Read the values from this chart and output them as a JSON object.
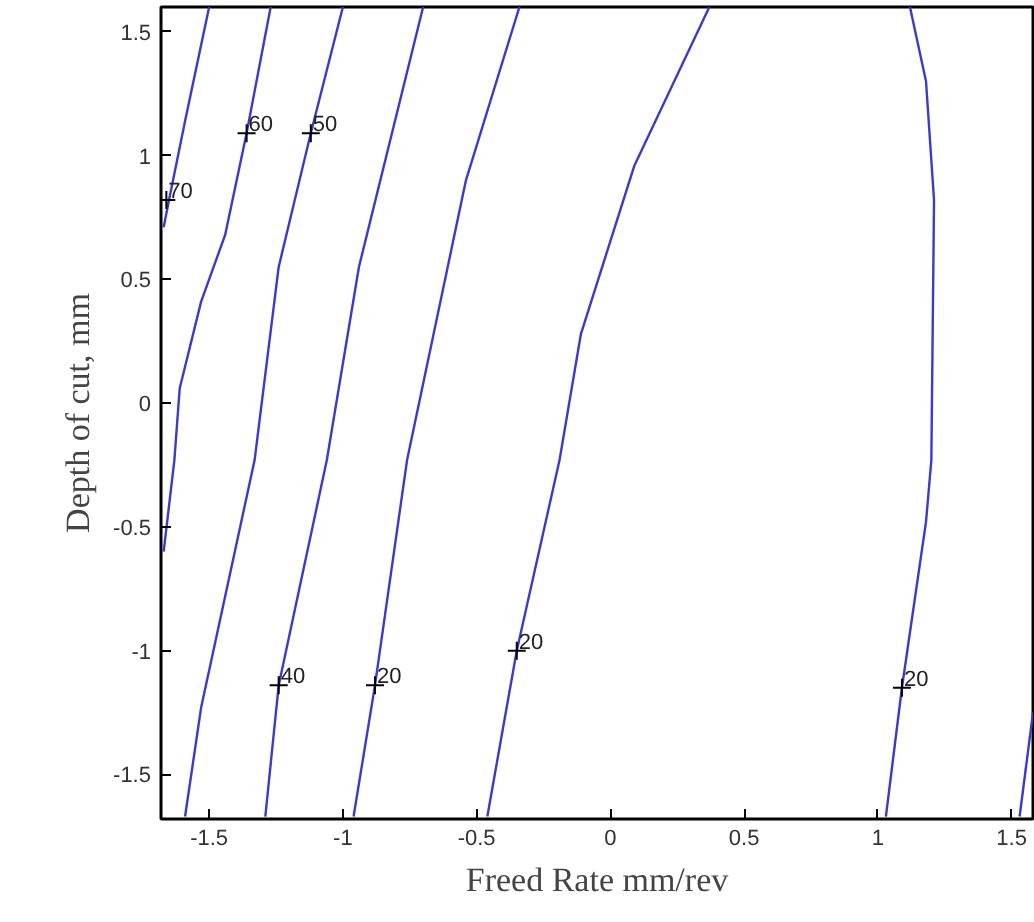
{
  "chart_data": {
    "type": "line",
    "xlabel": "Freed Rate mm/rev",
    "ylabel": "Depth of cut, mm",
    "xlim": [
      -1.68,
      1.58
    ],
    "ylim": [
      -1.68,
      1.6
    ],
    "xticks": [
      -1.5,
      -1,
      -0.5,
      0,
      0.5,
      1,
      1.5
    ],
    "yticks": [
      -1.5,
      -1,
      -0.5,
      0,
      0.5,
      1,
      1.5
    ],
    "grid": false,
    "marker": "none",
    "line_style": "solid",
    "series": [
      {
        "color": "#3a3acc",
        "x": [
          -1.5,
          -1.59,
          -1.65,
          -1.67
        ],
        "values": [
          1.6,
          1.14,
          0.82,
          0.71
        ]
      },
      {
        "color": "#3a3acc",
        "x": [
          -1.27,
          -1.36,
          -1.44,
          -1.53,
          -1.61,
          -1.63,
          -1.67
        ],
        "values": [
          1.6,
          1.09,
          0.68,
          0.41,
          0.06,
          -0.23,
          -0.6
        ]
      },
      {
        "color": "#3a3acc",
        "x": [
          -1.0,
          -1.12,
          -1.24,
          -1.33,
          -1.53,
          -1.59
        ],
        "values": [
          1.6,
          1.09,
          0.55,
          -0.23,
          -1.23,
          -1.67
        ]
      },
      {
        "color": "#3a3acc",
        "x": [
          -0.7,
          -0.94,
          -1.06,
          -1.24,
          -1.29
        ],
        "values": [
          1.6,
          0.55,
          -0.23,
          -1.14,
          -1.67
        ]
      },
      {
        "color": "#3a3acc",
        "x": [
          -0.34,
          -0.54,
          -0.76,
          -0.88,
          -0.96
        ],
        "values": [
          1.6,
          0.9,
          -0.23,
          -1.14,
          -1.67
        ]
      },
      {
        "color": "#3a3acc",
        "x": [
          0.37,
          0.09,
          -0.11,
          -0.19,
          -0.35,
          -0.46
        ],
        "values": [
          1.6,
          0.96,
          0.28,
          -0.23,
          -1.0,
          -1.67
        ]
      },
      {
        "color": "#3a3acc",
        "x": [
          1.12,
          1.18,
          1.21,
          1.2,
          1.18,
          1.09,
          1.03
        ],
        "values": [
          1.6,
          1.3,
          0.82,
          -0.23,
          -0.48,
          -1.15,
          -1.67
        ]
      },
      {
        "color": "#3a3acc",
        "x": [
          1.53,
          1.58
        ],
        "values": [
          -1.67,
          -1.25
        ]
      }
    ],
    "annotations": [
      {
        "text": "70",
        "x": -1.66,
        "y": 0.82
      },
      {
        "text": "60",
        "x": -1.36,
        "y": 1.09
      },
      {
        "text": "50",
        "x": -1.12,
        "y": 1.09
      },
      {
        "text": "40",
        "x": -1.24,
        "y": -1.14
      },
      {
        "text": "20",
        "x": -0.88,
        "y": -1.14
      },
      {
        "text": "20",
        "x": -0.35,
        "y": -1.0
      },
      {
        "text": "20",
        "x": 1.09,
        "y": -1.15
      }
    ]
  }
}
